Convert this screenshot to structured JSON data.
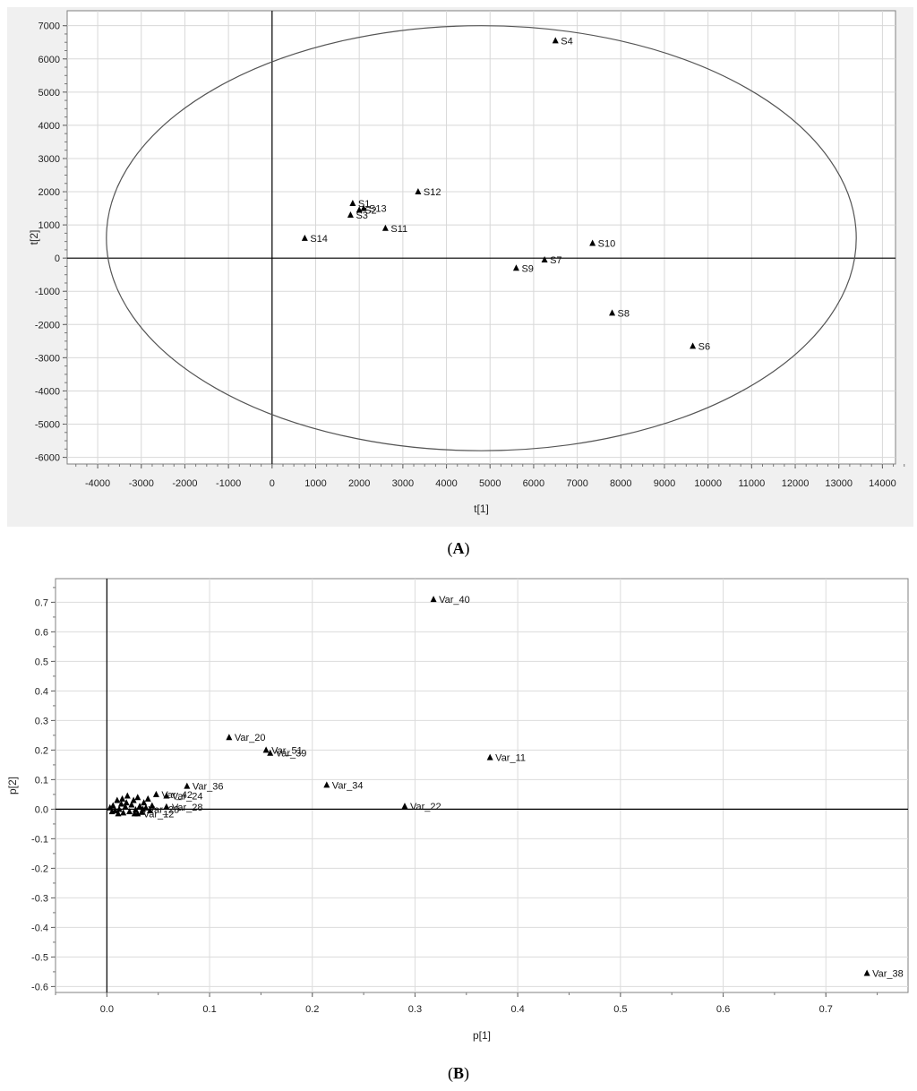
{
  "panel_labels": {
    "a": "A",
    "b": "B"
  },
  "chart_data": [
    {
      "type": "scatter",
      "title": "",
      "xlabel": "t[1]",
      "ylabel": "t[2]",
      "xlim": [
        -4700,
        14300
      ],
      "ylim": [
        -6200,
        7450
      ],
      "x_ticks": [
        -4000,
        -3000,
        -2000,
        -1000,
        0,
        1000,
        2000,
        3000,
        4000,
        5000,
        6000,
        7000,
        8000,
        9000,
        10000,
        11000,
        12000,
        13000,
        14000
      ],
      "y_ticks": [
        -6000,
        -5000,
        -4000,
        -3000,
        -2000,
        -1000,
        0,
        1000,
        2000,
        3000,
        4000,
        5000,
        6000,
        7000
      ],
      "grid": true,
      "ellipse": {
        "center": [
          4800,
          600
        ],
        "rx": 8600,
        "ry": 6400
      },
      "points": [
        {
          "label": "S1",
          "x": 1850,
          "y": 1650
        },
        {
          "label": "S2",
          "x": 2000,
          "y": 1450
        },
        {
          "label": "S3",
          "x": 1800,
          "y": 1300
        },
        {
          "label": "S13",
          "x": 2100,
          "y": 1500
        },
        {
          "label": "S14",
          "x": 750,
          "y": 600
        },
        {
          "label": "S11",
          "x": 2600,
          "y": 900
        },
        {
          "label": "S12",
          "x": 3350,
          "y": 2000
        },
        {
          "label": "S4",
          "x": 6500,
          "y": 6550
        },
        {
          "label": "S9",
          "x": 5600,
          "y": -300
        },
        {
          "label": "S7",
          "x": 6250,
          "y": -50
        },
        {
          "label": "S10",
          "x": 7350,
          "y": 450
        },
        {
          "label": "S8",
          "x": 7800,
          "y": -1650
        },
        {
          "label": "S6",
          "x": 9650,
          "y": -2650
        }
      ]
    },
    {
      "type": "scatter",
      "title": "",
      "xlabel": "p[1]",
      "ylabel": "p[2]",
      "xlim": [
        -0.05,
        0.78
      ],
      "ylim": [
        -0.62,
        0.78
      ],
      "x_ticks": [
        0.0,
        0.1,
        0.2,
        0.3,
        0.4,
        0.5,
        0.6,
        0.7
      ],
      "x_tick_labels": [
        "0.0",
        "0.1",
        "0.2",
        "0.3",
        "0.4",
        "0.5",
        "0.6",
        "0.7"
      ],
      "y_ticks": [
        -0.6,
        -0.5,
        -0.4,
        -0.3,
        -0.2,
        -0.1,
        0.0,
        0.1,
        0.2,
        0.3,
        0.4,
        0.5,
        0.6,
        0.7
      ],
      "y_tick_labels": [
        "-0.6",
        "-0.5",
        "-0.4",
        "-0.3",
        "-0.2",
        "-0.1",
        "0.0",
        "0.1",
        "0.2",
        "0.3",
        "0.4",
        "0.5",
        "0.6",
        "0.7"
      ],
      "grid": true,
      "points": [
        {
          "label": "Var_40",
          "x": 0.318,
          "y": 0.71
        },
        {
          "label": "Var_20",
          "x": 0.119,
          "y": 0.243
        },
        {
          "label": "Var_51",
          "x": 0.155,
          "y": 0.2
        },
        {
          "label": "Var_39",
          "x": 0.159,
          "y": 0.19
        },
        {
          "label": "Var_11",
          "x": 0.373,
          "y": 0.175
        },
        {
          "label": "Var_36",
          "x": 0.078,
          "y": 0.078
        },
        {
          "label": "Var_34",
          "x": 0.214,
          "y": 0.082
        },
        {
          "label": "Var_24",
          "x": 0.058,
          "y": 0.045
        },
        {
          "label": "Var_42",
          "x": 0.048,
          "y": 0.05
        },
        {
          "label": "Var_28",
          "x": 0.058,
          "y": 0.008
        },
        {
          "label": "Var_22",
          "x": 0.29,
          "y": 0.01
        },
        {
          "label": "Var_38",
          "x": 0.74,
          "y": -0.555
        },
        {
          "label": "Var_23",
          "x": 0.035,
          "y": 0.0
        },
        {
          "label": "Var_12",
          "x": 0.03,
          "y": -0.015
        },
        {
          "label": "",
          "x": 0.003,
          "y": 0.005
        },
        {
          "label": "",
          "x": 0.006,
          "y": 0.012
        },
        {
          "label": "",
          "x": 0.008,
          "y": -0.005
        },
        {
          "label": "",
          "x": 0.01,
          "y": 0.03
        },
        {
          "label": "",
          "x": 0.012,
          "y": 0.0
        },
        {
          "label": "",
          "x": 0.014,
          "y": 0.018
        },
        {
          "label": "",
          "x": 0.016,
          "y": -0.012
        },
        {
          "label": "",
          "x": 0.018,
          "y": 0.008
        },
        {
          "label": "",
          "x": 0.02,
          "y": 0.045
        },
        {
          "label": "",
          "x": 0.022,
          "y": -0.008
        },
        {
          "label": "",
          "x": 0.024,
          "y": 0.015
        },
        {
          "label": "",
          "x": 0.026,
          "y": 0.03
        },
        {
          "label": "",
          "x": 0.028,
          "y": -0.002
        },
        {
          "label": "",
          "x": 0.03,
          "y": 0.04
        },
        {
          "label": "",
          "x": 0.032,
          "y": 0.01
        },
        {
          "label": "",
          "x": 0.034,
          "y": -0.01
        },
        {
          "label": "",
          "x": 0.036,
          "y": 0.022
        },
        {
          "label": "",
          "x": 0.038,
          "y": 0.005
        },
        {
          "label": "",
          "x": 0.04,
          "y": 0.035
        },
        {
          "label": "",
          "x": 0.042,
          "y": -0.005
        },
        {
          "label": "",
          "x": 0.044,
          "y": 0.012
        },
        {
          "label": "",
          "x": 0.011,
          "y": -0.015
        },
        {
          "label": "",
          "x": 0.019,
          "y": 0.022
        },
        {
          "label": "",
          "x": 0.027,
          "y": -0.015
        },
        {
          "label": "",
          "x": 0.005,
          "y": -0.008
        },
        {
          "label": "",
          "x": 0.015,
          "y": 0.035
        }
      ]
    }
  ]
}
